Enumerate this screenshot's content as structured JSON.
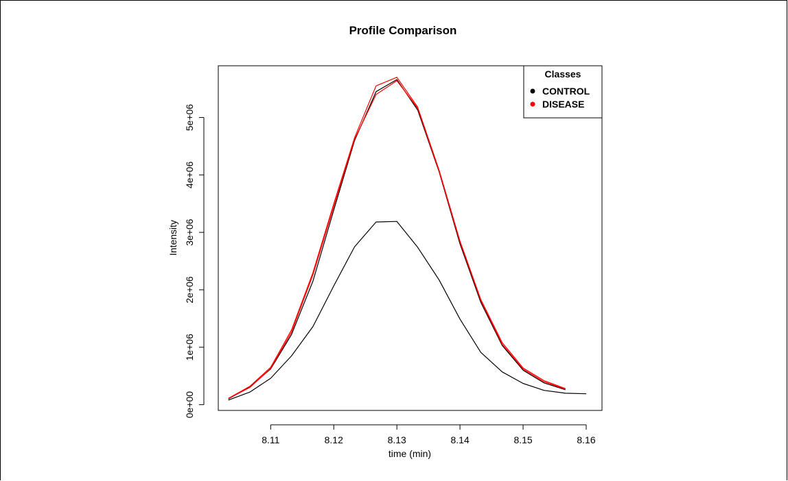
{
  "chart_data": {
    "type": "line",
    "title": "Profile Comparison",
    "xlabel": "time (min)",
    "ylabel": "Intensity",
    "xlim": [
      8.1017,
      8.1625
    ],
    "ylim": [
      -100000,
      5900000
    ],
    "x_ticks": [
      8.11,
      8.12,
      8.13,
      8.14,
      8.15,
      8.16
    ],
    "x_tick_labels": [
      "8.11",
      "8.12",
      "8.13",
      "8.14",
      "8.15",
      "8.16"
    ],
    "y_ticks": [
      0,
      1000000,
      2000000,
      3000000,
      4000000,
      5000000
    ],
    "y_tick_labels": [
      "0e+00",
      "1e+06",
      "2e+06",
      "3e+06",
      "4e+06",
      "5e+06"
    ],
    "grid": false,
    "legend": {
      "title": "Classes",
      "position": "top-right",
      "entries": [
        {
          "label": "CONTROL",
          "color": "#000000"
        },
        {
          "label": "DISEASE",
          "color": "#ff0000"
        }
      ]
    },
    "series": [
      {
        "class": "CONTROL",
        "color": "#000000",
        "x": [
          8.1033,
          8.1067,
          8.11,
          8.1133,
          8.1167,
          8.12,
          8.1233,
          8.1267,
          8.13,
          8.1333,
          8.1367,
          8.14,
          8.1433,
          8.1467,
          8.15,
          8.1533,
          8.1567
        ],
        "values": [
          100000,
          310000,
          620000,
          1220000,
          2150000,
          3390000,
          4600000,
          5450000,
          5660000,
          5130000,
          4050000,
          2800000,
          1780000,
          1030000,
          600000,
          380000,
          260000
        ]
      },
      {
        "class": "CONTROL",
        "color": "#000000",
        "x": [
          8.1033,
          8.1067,
          8.11,
          8.1133,
          8.1167,
          8.12,
          8.1233,
          8.1267,
          8.13,
          8.1333,
          8.1367,
          8.14,
          8.1433,
          8.1467,
          8.15,
          8.1533,
          8.1567,
          8.16
        ],
        "values": [
          80000,
          220000,
          460000,
          850000,
          1360000,
          2070000,
          2750000,
          3180000,
          3190000,
          2740000,
          2170000,
          1490000,
          910000,
          570000,
          370000,
          250000,
          200000,
          190000
        ]
      },
      {
        "class": "DISEASE",
        "color": "#ff0000",
        "x": [
          8.1033,
          8.1067,
          8.11,
          8.1133,
          8.1167,
          8.12,
          8.1233,
          8.1267,
          8.13,
          8.1333,
          8.1367,
          8.14,
          8.1433,
          8.1467,
          8.15,
          8.1533,
          8.1567
        ],
        "values": [
          110000,
          320000,
          650000,
          1300000,
          2300000,
          3500000,
          4650000,
          5550000,
          5700000,
          5180000,
          4080000,
          2850000,
          1830000,
          1080000,
          640000,
          420000,
          280000
        ]
      },
      {
        "class": "DISEASE",
        "color": "#ff0000",
        "x": [
          8.1033,
          8.1067,
          8.11,
          8.1133,
          8.1167,
          8.12,
          8.1233,
          8.1267,
          8.13,
          8.1333,
          8.1367,
          8.14,
          8.1433,
          8.1467,
          8.15,
          8.1533,
          8.1567
        ],
        "values": [
          105000,
          300000,
          630000,
          1260000,
          2260000,
          3450000,
          4620000,
          5400000,
          5640000,
          5160000,
          4060000,
          2830000,
          1810000,
          1050000,
          620000,
          400000,
          270000
        ]
      }
    ]
  }
}
